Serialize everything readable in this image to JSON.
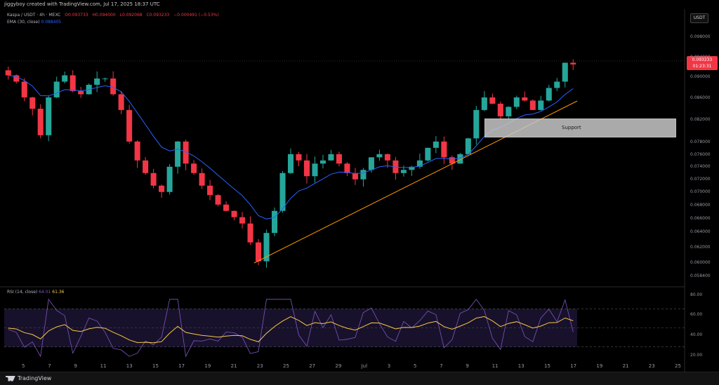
{
  "header": {
    "text": "jiggyboy created with TradingView.com, Jul 17, 2025 18:37 UTC"
  },
  "legend": {
    "symbol": "Kaspa / USDT · 4h · MEXC",
    "open": "O0.093733",
    "high": "H0.094000",
    "low": "L0.092068",
    "close": "C0.093233",
    "change": "−0.000491 (−0.53%)",
    "ema_label": "EMA (30, close)",
    "ema_value": "0.088405",
    "rsi_label": "RSI (14, close)",
    "rsi_value": "64.01",
    "rsi_ma": "61.36"
  },
  "currency_button": "USDT",
  "price_tag": {
    "price": "0.093233",
    "countdown": "01:23:31"
  },
  "price_axis": [
    "0.098000",
    "0.094000",
    "0.090000",
    "0.086000",
    "0.082000",
    "0.078000",
    "0.076000",
    "0.074000",
    "0.072000",
    "0.070000",
    "0.068000",
    "0.066000",
    "0.064000",
    "0.062000",
    "0.060000",
    "0.058400"
  ],
  "rsi_axis": [
    "80.00",
    "60.00",
    "40.00",
    "20.00"
  ],
  "time_axis": [
    "5",
    "7",
    "9",
    "11",
    "13",
    "15",
    "17",
    "19",
    "21",
    "23",
    "25",
    "27",
    "29",
    "Jul",
    "3",
    "5",
    "7",
    "9",
    "11",
    "13",
    "15",
    "17",
    "19",
    "21",
    "23",
    "25"
  ],
  "annotation": {
    "support_label": "Support"
  },
  "footer": {
    "brand": "TradingView"
  },
  "colors": {
    "up": "#26a69a",
    "down": "#f23645",
    "ema": "#2962ff",
    "rsi": "#7e57c2",
    "rsi_ma": "#f7c948",
    "trendline": "#ff9800"
  },
  "chart_data": {
    "type": "candlestick",
    "title": "Kaspa / USDT · 4h · MEXC",
    "approx_closes": [
      0.0915,
      0.0905,
      0.088,
      0.0862,
      0.082,
      0.088,
      0.0905,
      0.0915,
      0.089,
      0.0885,
      0.09,
      0.091,
      0.091,
      0.0885,
      0.086,
      0.081,
      0.078,
      0.076,
      0.074,
      0.073,
      0.077,
      0.081,
      0.0775,
      0.076,
      0.074,
      0.0725,
      0.071,
      0.07,
      0.069,
      0.068,
      0.065,
      0.062,
      0.0665,
      0.07,
      0.076,
      0.079,
      0.078,
      0.0755,
      0.0775,
      0.078,
      0.079,
      0.0775,
      0.076,
      0.075,
      0.0765,
      0.0785,
      0.079,
      0.078,
      0.076,
      0.0765,
      0.077,
      0.078,
      0.08,
      0.081,
      0.0785,
      0.0775,
      0.079,
      0.0815,
      0.086,
      0.088,
      0.087,
      0.085,
      0.0865,
      0.088,
      0.0875,
      0.086,
      0.0875,
      0.0895,
      0.0905,
      0.0935,
      0.09323
    ],
    "ylim": [
      0.0584,
      0.099
    ]
  }
}
